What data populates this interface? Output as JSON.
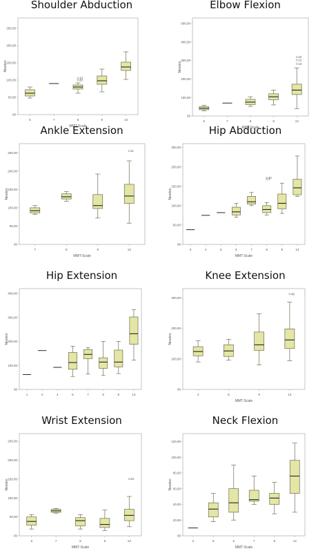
{
  "colors": {
    "box_fill": "#e3e6a4",
    "box_stroke": "#6c6c4f",
    "median": "#222222",
    "frame": "#aaaaaa",
    "outlier": "#777777"
  },
  "chart_data": [
    {
      "type": "boxplot",
      "title": "Shoulder Abduction",
      "xlabel": "MMT-Scale",
      "ylabel": "Newton",
      "ylim": [
        0,
        280
      ],
      "yticks": [
        0,
        50,
        100,
        150,
        200,
        250
      ],
      "ytick_labels": [
        "00",
        "50,00",
        "100,00",
        "150,00",
        "200,00",
        "250,00"
      ],
      "categories": [
        "6",
        "7",
        "8",
        "9",
        "13"
      ],
      "boxes": [
        {
          "cat": "6",
          "whisker_low": 48,
          "q1": 54,
          "median": 62,
          "q3": 72,
          "whisker_high": 80,
          "outliers": []
        },
        {
          "cat": "7",
          "whisker_low": 90,
          "q1": 90,
          "median": 90,
          "q3": 90,
          "whisker_high": 90,
          "outliers": []
        },
        {
          "cat": "8",
          "whisker_low": 62,
          "q1": 74,
          "median": 80,
          "q3": 86,
          "whisker_high": 92,
          "outliers": [
            {
              "value": 106,
              "label": "16"
            },
            {
              "value": 100,
              "label": "42"
            }
          ]
        },
        {
          "cat": "9",
          "whisker_low": 66,
          "q1": 88,
          "median": 98,
          "q3": 112,
          "whisker_high": 132,
          "outliers": []
        },
        {
          "cat": "13",
          "whisker_low": 102,
          "q1": 128,
          "median": 138,
          "q3": 152,
          "whisker_high": 182,
          "outliers": []
        }
      ]
    },
    {
      "type": "boxplot",
      "title": "Elbow Flexion",
      "xlabel": "MMT-Scale",
      "ylabel": "Newton",
      "ylim": [
        0,
        530
      ],
      "yticks": [
        0,
        100,
        200,
        300,
        400,
        500
      ],
      "ytick_labels": [
        "00",
        "100,00",
        "200,00",
        "300,00",
        "400,00",
        "500,00"
      ],
      "categories": [
        "6",
        "7",
        "8",
        "9",
        "13"
      ],
      "boxes": [
        {
          "cat": "6",
          "whisker_low": 28,
          "q1": 34,
          "median": 42,
          "q3": 50,
          "whisker_high": 58,
          "outliers": []
        },
        {
          "cat": "7",
          "whisker_low": 70,
          "q1": 70,
          "median": 70,
          "q3": 70,
          "whisker_high": 70,
          "outliers": []
        },
        {
          "cat": "8",
          "whisker_low": 52,
          "q1": 62,
          "median": 75,
          "q3": 90,
          "whisker_high": 104,
          "outliers": []
        },
        {
          "cat": "9",
          "whisker_low": 60,
          "q1": 88,
          "median": 104,
          "q3": 120,
          "whisker_high": 140,
          "outliers": []
        },
        {
          "cat": "13",
          "whisker_low": 40,
          "q1": 116,
          "median": 140,
          "q3": 172,
          "whisker_high": 260,
          "outliers": [
            {
              "value": 318,
              "label": "22"
            },
            {
              "value": 302,
              "label": "12"
            },
            {
              "value": 282,
              "label": "13"
            }
          ]
        }
      ]
    },
    {
      "type": "boxplot",
      "title": "Ankle Extension",
      "xlabel": "MMT-Scale",
      "ylabel": "Newton",
      "ylim": [
        0,
        275
      ],
      "yticks": [
        0,
        50,
        100,
        150,
        200,
        250
      ],
      "ytick_labels": [
        "00",
        "50,00",
        "100,00",
        "150,00",
        "200,00",
        "250,00"
      ],
      "categories": [
        "7",
        "8",
        "9",
        "13"
      ],
      "boxes": [
        {
          "cat": "7",
          "whisker_low": 82,
          "q1": 86,
          "median": 92,
          "q3": 100,
          "whisker_high": 106,
          "outliers": []
        },
        {
          "cat": "8",
          "whisker_low": 118,
          "q1": 124,
          "median": 130,
          "q3": 138,
          "whisker_high": 144,
          "outliers": []
        },
        {
          "cat": "9",
          "whisker_low": 72,
          "q1": 98,
          "median": 106,
          "q3": 136,
          "whisker_high": 192,
          "outliers": []
        },
        {
          "cat": "13",
          "whisker_low": 58,
          "q1": 112,
          "median": 132,
          "q3": 164,
          "whisker_high": 228,
          "outliers": [
            {
              "value": 255,
              "label": "11"
            }
          ]
        }
      ]
    },
    {
      "type": "boxplot",
      "title": "Hip Abduction",
      "xlabel": "MMT-Scale",
      "ylabel": "Newton",
      "ylim": [
        0,
        260
      ],
      "yticks": [
        0,
        50,
        100,
        150,
        200,
        250
      ],
      "ytick_labels": [
        "00",
        "50,00",
        "100,00",
        "150,00",
        "200,00",
        "250,00"
      ],
      "categories": [
        "3",
        "4",
        "5",
        "6",
        "7",
        "8",
        "9",
        "13"
      ],
      "boxes": [
        {
          "cat": "3",
          "whisker_low": 38,
          "q1": 38,
          "median": 38,
          "q3": 38,
          "whisker_high": 38,
          "outliers": []
        },
        {
          "cat": "4",
          "whisker_low": 75,
          "q1": 75,
          "median": 75,
          "q3": 75,
          "whisker_high": 75,
          "outliers": []
        },
        {
          "cat": "5",
          "whisker_low": 82,
          "q1": 82,
          "median": 82,
          "q3": 82,
          "whisker_high": 82,
          "outliers": []
        },
        {
          "cat": "6",
          "whisker_low": 70,
          "q1": 76,
          "median": 84,
          "q3": 96,
          "whisker_high": 106,
          "outliers": []
        },
        {
          "cat": "7",
          "whisker_low": 100,
          "q1": 104,
          "median": 110,
          "q3": 124,
          "whisker_high": 134,
          "outliers": []
        },
        {
          "cat": "8",
          "whisker_low": 76,
          "q1": 82,
          "median": 90,
          "q3": 100,
          "whisker_high": 108,
          "outliers": [
            {
              "value": 172,
              "label": "40"
            },
            {
              "value": 168,
              "label": "4"
            }
          ]
        },
        {
          "cat": "9",
          "whisker_low": 80,
          "q1": 92,
          "median": 106,
          "q3": 130,
          "whisker_high": 158,
          "outliers": []
        },
        {
          "cat": "13",
          "whisker_low": 124,
          "q1": 128,
          "median": 146,
          "q3": 168,
          "whisker_high": 228,
          "outliers": []
        }
      ]
    },
    {
      "type": "boxplot",
      "title": "Hip Extension",
      "xlabel": "",
      "ylabel": "Newton",
      "ylim": [
        0,
        420
      ],
      "yticks": [
        0,
        100,
        200,
        300,
        400
      ],
      "ytick_labels": [
        "00",
        "100,00",
        "200,00",
        "300,00",
        "400,00"
      ],
      "categories": [
        "1",
        "2",
        "4",
        "6",
        "7",
        "8",
        "9",
        "13"
      ],
      "boxes": [
        {
          "cat": "1",
          "whisker_low": 62,
          "q1": 62,
          "median": 62,
          "q3": 62,
          "whisker_high": 62,
          "outliers": []
        },
        {
          "cat": "2",
          "whisker_low": 162,
          "q1": 162,
          "median": 162,
          "q3": 162,
          "whisker_high": 162,
          "outliers": []
        },
        {
          "cat": "4",
          "whisker_low": 92,
          "q1": 92,
          "median": 92,
          "q3": 92,
          "whisker_high": 92,
          "outliers": []
        },
        {
          "cat": "6",
          "whisker_low": 54,
          "q1": 84,
          "median": 112,
          "q3": 154,
          "whisker_high": 180,
          "outliers": []
        },
        {
          "cat": "7",
          "whisker_low": 64,
          "q1": 128,
          "median": 146,
          "q3": 166,
          "whisker_high": 174,
          "outliers": []
        },
        {
          "cat": "8",
          "whisker_low": 58,
          "q1": 88,
          "median": 114,
          "q3": 132,
          "whisker_high": 200,
          "outliers": []
        },
        {
          "cat": "9",
          "whisker_low": 66,
          "q1": 94,
          "median": 114,
          "q3": 164,
          "whisker_high": 200,
          "outliers": []
        },
        {
          "cat": "13",
          "whisker_low": 122,
          "q1": 188,
          "median": 232,
          "q3": 302,
          "whisker_high": 332,
          "outliers": []
        }
      ]
    },
    {
      "type": "boxplot",
      "title": "Knee Extension",
      "xlabel": "MMT-Scale",
      "ylabel": "Newton",
      "ylim": [
        0,
        330
      ],
      "yticks": [
        0,
        100,
        200,
        300
      ],
      "ytick_labels": [
        "00",
        "100,00",
        "200,00",
        "300,00"
      ],
      "categories": [
        "4",
        "8",
        "9",
        "13"
      ],
      "boxes": [
        {
          "cat": "4",
          "whisker_low": 90,
          "q1": 110,
          "median": 124,
          "q3": 140,
          "whisker_high": 160,
          "outliers": []
        },
        {
          "cat": "8",
          "whisker_low": 96,
          "q1": 108,
          "median": 126,
          "q3": 146,
          "whisker_high": 164,
          "outliers": []
        },
        {
          "cat": "9",
          "whisker_low": 80,
          "q1": 128,
          "median": 146,
          "q3": 188,
          "whisker_high": 248,
          "outliers": []
        },
        {
          "cat": "13",
          "whisker_low": 94,
          "q1": 134,
          "median": 162,
          "q3": 198,
          "whisker_high": 286,
          "outliers": [
            {
              "value": 312,
              "label": "49"
            }
          ]
        }
      ]
    },
    {
      "type": "boxplot",
      "title": "Wrist Extension",
      "xlabel": "MMT-Scale",
      "ylabel": "Newton",
      "ylim": [
        0,
        270
      ],
      "yticks": [
        0,
        50,
        100,
        150,
        200,
        250
      ],
      "ytick_labels": [
        "00",
        "50,00",
        "100,00",
        "150,00",
        "200,00",
        "250,00"
      ],
      "categories": [
        "6",
        "7",
        "8",
        "9",
        "13"
      ],
      "boxes": [
        {
          "cat": "6",
          "whisker_low": 18,
          "q1": 28,
          "median": 38,
          "q3": 50,
          "whisker_high": 56,
          "outliers": []
        },
        {
          "cat": "7",
          "whisker_low": 60,
          "q1": 62,
          "median": 66,
          "q3": 70,
          "whisker_high": 72,
          "outliers": []
        },
        {
          "cat": "8",
          "whisker_low": 18,
          "q1": 26,
          "median": 40,
          "q3": 48,
          "whisker_high": 56,
          "outliers": []
        },
        {
          "cat": "9",
          "whisker_low": 14,
          "q1": 22,
          "median": 30,
          "q3": 46,
          "whisker_high": 68,
          "outliers": []
        },
        {
          "cat": "13",
          "whisker_low": 24,
          "q1": 40,
          "median": 54,
          "q3": 70,
          "whisker_high": 104,
          "outliers": [
            {
              "value": 150,
              "label": "22"
            }
          ]
        }
      ]
    },
    {
      "type": "boxplot",
      "title": "Neck Flexion",
      "xlabel": "MMT-Scale",
      "ylabel": "Newton",
      "ylim": [
        0,
        130
      ],
      "yticks": [
        0,
        20,
        40,
        60,
        80,
        100,
        120
      ],
      "ytick_labels": [
        "00",
        "20,00",
        "40,00",
        "60,00",
        "80,00",
        "100,00",
        "120,00"
      ],
      "categories": [
        "3",
        "5",
        "6",
        "7",
        "8",
        "13"
      ],
      "boxes": [
        {
          "cat": "3",
          "whisker_low": 10,
          "q1": 10,
          "median": 10,
          "q3": 10,
          "whisker_high": 10,
          "outliers": []
        },
        {
          "cat": "5",
          "whisker_low": 18,
          "q1": 24,
          "median": 34,
          "q3": 42,
          "whisker_high": 54,
          "outliers": []
        },
        {
          "cat": "6",
          "whisker_low": 20,
          "q1": 30,
          "median": 42,
          "q3": 60,
          "whisker_high": 90,
          "outliers": []
        },
        {
          "cat": "7",
          "whisker_low": 40,
          "q1": 44,
          "median": 46,
          "q3": 58,
          "whisker_high": 76,
          "outliers": []
        },
        {
          "cat": "8",
          "whisker_low": 28,
          "q1": 40,
          "median": 48,
          "q3": 54,
          "whisker_high": 68,
          "outliers": []
        },
        {
          "cat": "13",
          "whisker_low": 30,
          "q1": 54,
          "median": 76,
          "q3": 96,
          "whisker_high": 118,
          "outliers": []
        }
      ]
    }
  ]
}
